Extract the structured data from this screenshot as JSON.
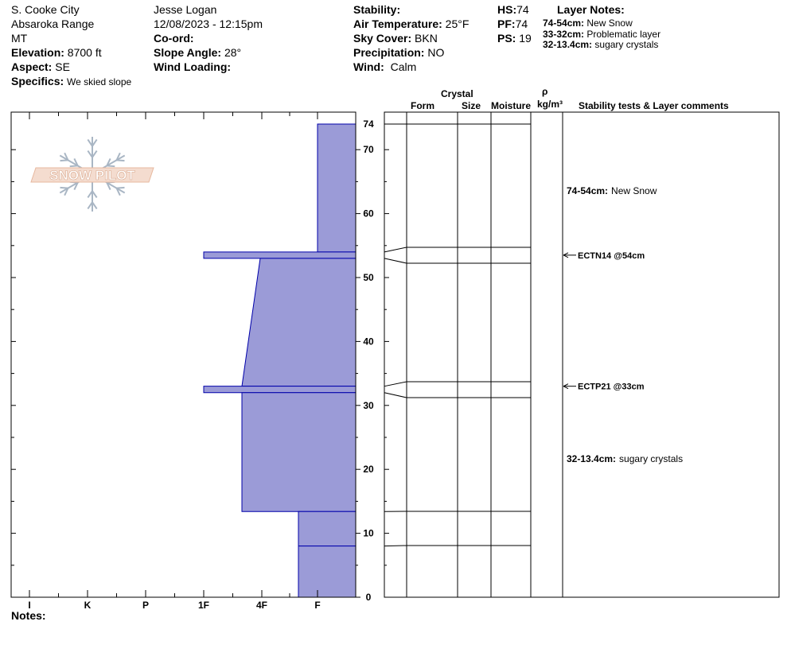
{
  "header": {
    "location": "S. Cooke City",
    "range": "Absaroka Range",
    "state": "MT",
    "elevation_label": "Elevation:",
    "elevation_value": "8700 ft",
    "aspect_label": "Aspect:",
    "aspect_value": "SE",
    "specifics_label": "Specifics:",
    "specifics_value": "We skied slope",
    "observer": "Jesse Logan",
    "datetime": "12/08/2023 - 12:15pm",
    "coord_label": "Co-ord:",
    "slope_label": "Slope Angle:",
    "slope_value": "28°",
    "wind_loading_label": "Wind Loading:",
    "stability_label": "Stability:",
    "air_temp_label": "Air Temperature:",
    "air_temp_value": "25°F",
    "sky_label": "Sky Cover:",
    "sky_value": "BKN",
    "precip_label": "Precipitation:",
    "precip_value": "NO",
    "wind_label": "Wind:",
    "wind_value": "Calm",
    "hs_label": "HS:",
    "hs_value": "74",
    "pf_label": "PF:",
    "pf_value": "74",
    "ps_label": "PS:",
    "ps_value": "19",
    "layer_notes_title": "Layer Notes:",
    "layer_notes": [
      {
        "range": "74-54cm:",
        "text": "New Snow"
      },
      {
        "range": "33-32cm:",
        "text": "Problematic layer"
      },
      {
        "range": "32-13.4cm:",
        "text": "sugary crystals"
      }
    ]
  },
  "logo_text": "SNOW PILOT",
  "notes_label": "Notes:",
  "columns": {
    "crystal": "Crystal",
    "form": "Form",
    "size": "Size",
    "moisture": "Moisture",
    "rho": "ρ",
    "density_unit": "kg/m³",
    "comments": "Stability tests & Layer comments"
  },
  "comments": [
    {
      "depth": 54,
      "range": "74-54cm:",
      "text": "New Snow"
    },
    {
      "depth": 20,
      "range": "32-13.4cm:",
      "text": "sugary crystals"
    }
  ],
  "stability_tests": [
    {
      "depth": 54,
      "label": "ECTN14 @54cm"
    },
    {
      "depth": 33,
      "label": "ECTP21 @33cm"
    }
  ],
  "colors": {
    "hardness_fill": "#9b9bd7",
    "hardness_stroke": "#0000aa"
  },
  "chart_data": {
    "type": "area",
    "title": "",
    "xlabel": "",
    "ylabel": "",
    "x_axis": {
      "ticks": [
        "I",
        "K",
        "P",
        "1F",
        "4F",
        "F"
      ],
      "reversed": true
    },
    "y_axis": {
      "ticks": [
        0,
        10,
        20,
        30,
        40,
        50,
        60,
        70,
        74
      ],
      "ylim": [
        0,
        74
      ],
      "unit": "cm"
    },
    "series": [
      {
        "values": [
          {
            "top": 74,
            "bottom": 54,
            "hardness_top": "F",
            "hardness_bottom": "F"
          },
          {
            "top": 54,
            "bottom": 53,
            "hardness_top": "1F",
            "hardness_bottom": "1F"
          },
          {
            "top": 53,
            "bottom": 33,
            "hardness_top": "F-4F",
            "hardness_bottom": "4F-"
          },
          {
            "top": 33,
            "bottom": 32,
            "hardness_top": "1F",
            "hardness_bottom": "1F"
          },
          {
            "top": 32,
            "bottom": 13.4,
            "hardness_top": "4F-",
            "hardness_bottom": "4F-"
          },
          {
            "top": 13.4,
            "bottom": 8,
            "hardness_top": "F+",
            "hardness_bottom": "F+"
          },
          {
            "top": 8,
            "bottom": 0,
            "hardness_top": "F+",
            "hardness_bottom": "F+"
          }
        ]
      }
    ],
    "layer_boundaries": [
      74,
      54,
      53,
      33,
      32,
      13.4,
      8,
      0
    ]
  }
}
